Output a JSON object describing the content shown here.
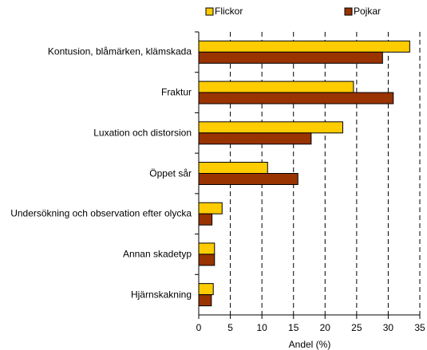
{
  "chart_data": {
    "type": "barh",
    "xlabel": "Andel (%)",
    "categories": [
      "Kontusion, blåmärken, klämskada",
      "Fraktur",
      "Luxation och distorsion",
      "Öppet sår",
      "Undersökning och observation efter olycka",
      "Annan skadetyp",
      "Hjärnskakning"
    ],
    "series": [
      {
        "name": "Flickor",
        "color": "#ffcc00",
        "values": [
          33.4,
          24.5,
          22.8,
          10.9,
          3.7,
          2.5,
          2.3
        ]
      },
      {
        "name": "Pojkar",
        "color": "#993300",
        "values": [
          29.1,
          30.8,
          17.8,
          15.7,
          2.1,
          2.5,
          2.0
        ]
      }
    ],
    "xlim": [
      0,
      35
    ],
    "xticks": [
      0,
      5,
      10,
      15,
      20,
      25,
      30,
      35
    ],
    "grid": true
  }
}
